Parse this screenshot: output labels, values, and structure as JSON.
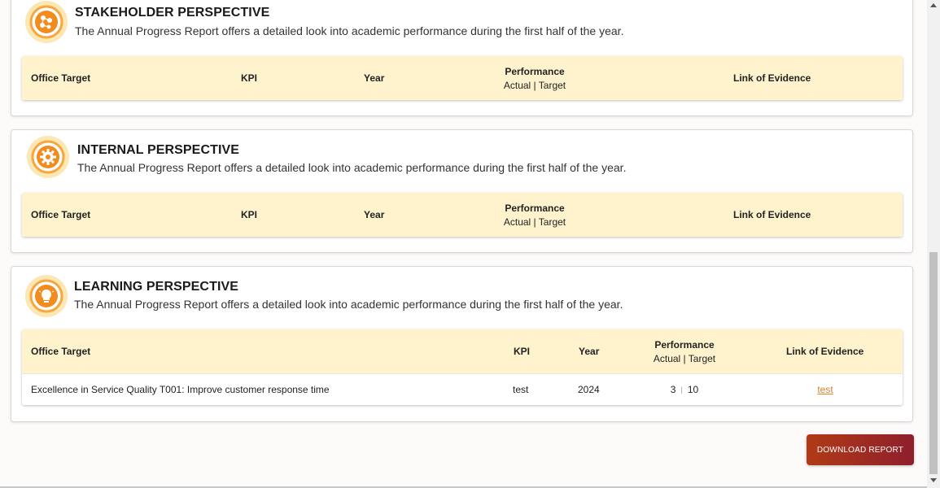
{
  "sections": [
    {
      "title": "STAKEHOLDER PERSPECTIVE",
      "subtitle": "The Annual Progress Report offers a detailed look into academic performance during the first half of the year.",
      "icon": "network-icon",
      "headers": {
        "office_target": "Office Target",
        "kpi": "KPI",
        "year": "Year",
        "performance": "Performance",
        "performance_sub": "Actual | Target",
        "link": "Link of Evidence"
      }
    },
    {
      "title": "INTERNAL PERSPECTIVE",
      "subtitle": "The Annual Progress Report offers a detailed look into academic performance during the first half of the year.",
      "icon": "gear-icon",
      "headers": {
        "office_target": "Office Target",
        "kpi": "KPI",
        "year": "Year",
        "performance": "Performance",
        "performance_sub": "Actual | Target",
        "link": "Link of Evidence"
      }
    },
    {
      "title": "LEARNING PERSPECTIVE",
      "subtitle": "The Annual Progress Report offers a detailed look into academic performance during the first half of the year.",
      "icon": "lightbulb-icon",
      "headers": {
        "office_target": "Office Target",
        "kpi": "KPI",
        "year": "Year",
        "performance": "Performance",
        "performance_sub": "Actual | Target",
        "link": "Link of Evidence"
      },
      "rows": [
        {
          "office_target": "Excellence in Service Quality T001: Improve customer response time",
          "kpi": "test",
          "year": "2024",
          "actual": "3",
          "target": "10",
          "link": "test"
        }
      ]
    }
  ],
  "download_label": "DOWNLOAD REPORT",
  "colors": {
    "accent": "#f28c1e",
    "header_bg": "#fff3cd",
    "button_start": "#b13a17",
    "button_end": "#8e1f2c"
  }
}
